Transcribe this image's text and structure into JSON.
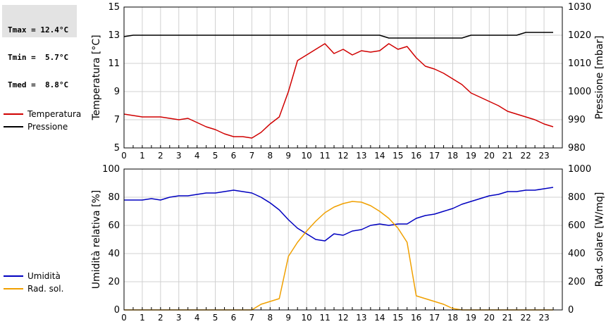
{
  "stats": {
    "tmax": "Tmax = 12.4°C",
    "tmin": "Tmin =  5.7°C",
    "tmed": "Tmed =  8.8°C"
  },
  "chart_data": [
    {
      "type": "line",
      "x_ticks": [
        "0",
        "1",
        "2",
        "3",
        "4",
        "5",
        "6",
        "7",
        "8",
        "9",
        "10",
        "11",
        "12",
        "13",
        "14",
        "15",
        "16",
        "17",
        "18",
        "19",
        "20",
        "21",
        "22",
        "23"
      ],
      "xlim": [
        0,
        24
      ],
      "left_axis": {
        "label": "Temperatura [°C]",
        "ylim": [
          5,
          15
        ],
        "ticks": [
          "5",
          "7",
          "9",
          "11",
          "13",
          "15"
        ]
      },
      "right_axis": {
        "label": "Pressione [mbar]",
        "ylim": [
          980,
          1030
        ],
        "ticks": [
          "980",
          "990",
          "1000",
          "1010",
          "1020",
          "1030"
        ]
      },
      "grid": true,
      "legend": "left",
      "series": [
        {
          "name": "Temperatura",
          "axis": "left",
          "color": "#d00000",
          "x": [
            0,
            0.5,
            1,
            1.5,
            2,
            2.5,
            3,
            3.5,
            4,
            4.5,
            5,
            5.5,
            6,
            6.5,
            7,
            7.5,
            8,
            8.5,
            9,
            9.5,
            10,
            10.5,
            11,
            11.5,
            12,
            12.5,
            13,
            13.5,
            14,
            14.5,
            15,
            15.5,
            16,
            16.5,
            17,
            17.5,
            18,
            18.5,
            19,
            19.5,
            20,
            20.5,
            21,
            21.5,
            22,
            22.5,
            23,
            23.5
          ],
          "y": [
            7.4,
            7.3,
            7.2,
            7.2,
            7.2,
            7.1,
            7.0,
            7.1,
            6.8,
            6.5,
            6.3,
            6.0,
            5.8,
            5.8,
            5.7,
            6.1,
            6.7,
            7.2,
            9.0,
            11.2,
            11.6,
            12.0,
            12.4,
            11.7,
            12.0,
            11.6,
            11.9,
            11.8,
            11.9,
            12.4,
            12.0,
            12.2,
            11.4,
            10.8,
            10.6,
            10.3,
            9.9,
            9.5,
            8.9,
            8.6,
            8.3,
            8.0,
            7.6,
            7.4,
            7.2,
            7.0,
            6.7,
            6.5
          ]
        },
        {
          "name": "Pressione",
          "axis": "right",
          "color": "#000000",
          "x": [
            0,
            0.5,
            1,
            14,
            14.5,
            15,
            18,
            18.5,
            19,
            21.5,
            22,
            23.5
          ],
          "y": [
            1019.5,
            1020,
            1020,
            1020,
            1019,
            1019,
            1019,
            1019,
            1020,
            1020,
            1021,
            1021
          ]
        }
      ]
    },
    {
      "type": "line",
      "x_ticks": [
        "0",
        "1",
        "2",
        "3",
        "4",
        "5",
        "6",
        "7",
        "8",
        "9",
        "10",
        "11",
        "12",
        "13",
        "14",
        "15",
        "16",
        "17",
        "18",
        "19",
        "20",
        "21",
        "22",
        "23"
      ],
      "xlim": [
        0,
        24
      ],
      "left_axis": {
        "label": "Umidità relativa [%]",
        "ylim": [
          0,
          100
        ],
        "ticks": [
          "0",
          "20",
          "40",
          "60",
          "80",
          "100"
        ]
      },
      "right_axis": {
        "label": "Rad. solare [W/mq]",
        "ylim": [
          0,
          1000
        ],
        "ticks": [
          "0",
          "200",
          "400",
          "600",
          "800",
          "1000"
        ]
      },
      "grid": true,
      "legend": "left",
      "series": [
        {
          "name": "Umidità",
          "axis": "left",
          "color": "#0000c0",
          "x": [
            0,
            0.5,
            1,
            1.5,
            2,
            2.5,
            3,
            3.5,
            4,
            4.5,
            5,
            5.5,
            6,
            6.5,
            7,
            7.5,
            8,
            8.5,
            9,
            9.5,
            10,
            10.5,
            11,
            11.5,
            12,
            12.5,
            13,
            13.5,
            14,
            14.5,
            15,
            15.5,
            16,
            16.5,
            17,
            17.5,
            18,
            18.5,
            19,
            19.5,
            20,
            20.5,
            21,
            21.5,
            22,
            22.5,
            23,
            23.5
          ],
          "y": [
            78,
            78,
            78,
            79,
            78,
            80,
            81,
            81,
            82,
            83,
            83,
            84,
            85,
            84,
            83,
            80,
            76,
            71,
            64,
            58,
            54,
            50,
            49,
            54,
            53,
            56,
            57,
            60,
            61,
            60,
            61,
            61,
            65,
            67,
            68,
            70,
            72,
            75,
            77,
            79,
            81,
            82,
            84,
            84,
            85,
            85,
            86,
            87
          ]
        },
        {
          "name": "Rad. sol.",
          "axis": "right",
          "color": "#f0a000",
          "x": [
            0,
            7,
            7.5,
            8,
            8.5,
            9,
            9.5,
            10,
            10.5,
            11,
            11.5,
            12,
            12.5,
            13,
            13.5,
            14,
            14.5,
            15,
            15.5,
            16,
            16.5,
            17,
            17.5,
            18,
            18.5,
            19,
            23.5
          ],
          "y": [
            0,
            0,
            40,
            60,
            80,
            380,
            480,
            560,
            630,
            690,
            730,
            755,
            770,
            765,
            740,
            700,
            650,
            580,
            480,
            100,
            80,
            60,
            40,
            10,
            0,
            0,
            0
          ]
        }
      ]
    }
  ]
}
